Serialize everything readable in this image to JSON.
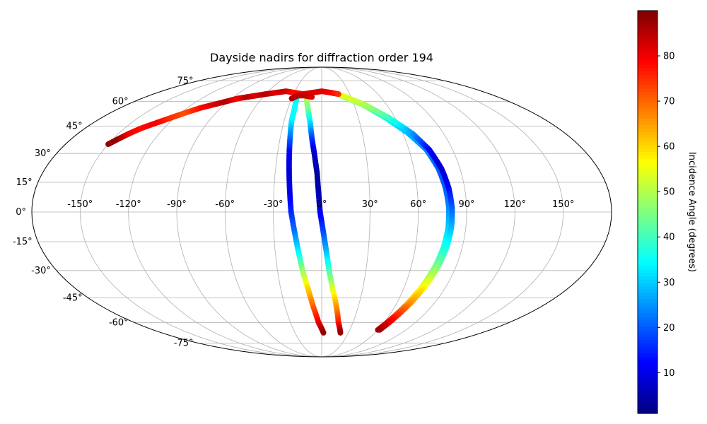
{
  "chart_data": {
    "type": "scatter",
    "projection": "mollweide",
    "title": "Dayside nadirs for diffraction order 194",
    "grid": true,
    "lon_ticks": [
      -150,
      -120,
      -90,
      -60,
      -30,
      0,
      30,
      60,
      90,
      120,
      150
    ],
    "lon_tick_labels": [
      "-150°",
      "-120°",
      "-90°",
      "-60°",
      "-30°",
      "0°",
      "30°",
      "60°",
      "90°",
      "120°",
      "150°"
    ],
    "lat_ticks": [
      75,
      60,
      45,
      30,
      15,
      0,
      -15,
      -30,
      -45,
      -60,
      -75
    ],
    "lat_tick_labels": [
      "75°",
      "60°",
      "45°",
      "30°",
      "15°",
      "0°",
      "-15°",
      "-30°",
      "-45°",
      "-60°",
      "-75°"
    ],
    "colorbar": {
      "label": "Incidence Angle (degrees)",
      "colormap": "jet",
      "range": [
        1,
        90
      ],
      "ticks": [
        10,
        20,
        30,
        40,
        50,
        60,
        70,
        80
      ],
      "tick_labels": [
        "10",
        "20",
        "30",
        "40",
        "50",
        "60",
        "70",
        "80"
      ],
      "placement": "right"
    },
    "series": [
      {
        "points": [
          [
            -25,
            62,
            33
          ],
          [
            -24,
            55,
            35
          ],
          [
            -24,
            48,
            34
          ],
          [
            -23,
            40,
            24
          ],
          [
            -22,
            30,
            12
          ],
          [
            -21,
            20,
            8
          ],
          [
            -20,
            10,
            10
          ],
          [
            -19,
            0,
            15
          ],
          [
            -17,
            -10,
            22
          ],
          [
            -15,
            -20,
            33
          ],
          [
            -13,
            -30,
            47
          ],
          [
            -10,
            -40,
            60
          ],
          [
            -7,
            -50,
            70
          ],
          [
            -3,
            -60,
            80
          ],
          [
            2,
            -67,
            88
          ]
        ]
      },
      {
        "points": [
          [
            -15,
            62,
            50
          ],
          [
            -12,
            55,
            45
          ],
          [
            -9,
            47,
            32
          ],
          [
            -7,
            38,
            18
          ],
          [
            -5,
            30,
            8
          ],
          [
            -3,
            20,
            4
          ],
          [
            -2,
            10,
            5
          ],
          [
            -1,
            0,
            10
          ],
          [
            1,
            -10,
            18
          ],
          [
            3,
            -20,
            28
          ],
          [
            5,
            -30,
            40
          ],
          [
            8,
            -40,
            53
          ],
          [
            12,
            -50,
            65
          ],
          [
            16,
            -60,
            76
          ],
          [
            21,
            -67,
            88
          ]
        ]
      },
      {
        "points": [
          [
            20,
            64,
            48
          ],
          [
            38,
            58,
            45
          ],
          [
            52,
            50,
            36
          ],
          [
            64,
            41,
            28
          ],
          [
            72,
            32,
            24
          ],
          [
            76,
            22,
            20
          ],
          [
            78,
            12,
            20
          ],
          [
            79,
            2,
            24
          ],
          [
            79,
            -8,
            30
          ],
          [
            78,
            -18,
            36
          ],
          [
            76,
            -28,
            44
          ],
          [
            73,
            -38,
            54
          ],
          [
            69,
            -48,
            64
          ],
          [
            64,
            -58,
            78
          ],
          [
            60,
            -65,
            87
          ]
        ]
      },
      {
        "points": [
          [
            22,
            64,
            55
          ],
          [
            40,
            58,
            50
          ],
          [
            55,
            50,
            40
          ],
          [
            67,
            41,
            26
          ],
          [
            74,
            32,
            12
          ],
          [
            78,
            22,
            8
          ],
          [
            80,
            12,
            12
          ],
          [
            81,
            2,
            20
          ],
          [
            81,
            -8,
            28
          ],
          [
            80,
            -18,
            36
          ],
          [
            78,
            -28,
            45
          ],
          [
            75,
            -38,
            56
          ],
          [
            71,
            -48,
            66
          ],
          [
            66,
            -58,
            78
          ],
          [
            62,
            -65,
            87
          ]
        ]
      },
      {
        "points": [
          [
            -150,
            35,
            88
          ],
          [
            -146,
            38,
            88
          ],
          [
            -142,
            41,
            80
          ],
          [
            -137,
            44,
            78
          ],
          [
            -130,
            47,
            80
          ],
          [
            -123,
            50,
            75
          ],
          [
            -116,
            53,
            72
          ],
          [
            -108,
            56,
            78
          ],
          [
            -100,
            58,
            82
          ],
          [
            -92,
            60,
            86
          ],
          [
            -84,
            62,
            80
          ],
          [
            -76,
            63,
            85
          ],
          [
            -68,
            64,
            82
          ],
          [
            -60,
            65,
            85
          ],
          [
            -50,
            66,
            82
          ],
          [
            -40,
            67,
            84
          ],
          [
            -30,
            66,
            78
          ],
          [
            -20,
            65,
            80
          ],
          [
            -10,
            66,
            82
          ],
          [
            0,
            67,
            82
          ],
          [
            10,
            66,
            80
          ],
          [
            18,
            65,
            75
          ]
        ]
      },
      {
        "points": [
          [
            -30,
            62,
            86
          ],
          [
            -25,
            64,
            85
          ],
          [
            -18,
            64,
            84
          ],
          [
            -10,
            63,
            82
          ]
        ]
      }
    ]
  }
}
